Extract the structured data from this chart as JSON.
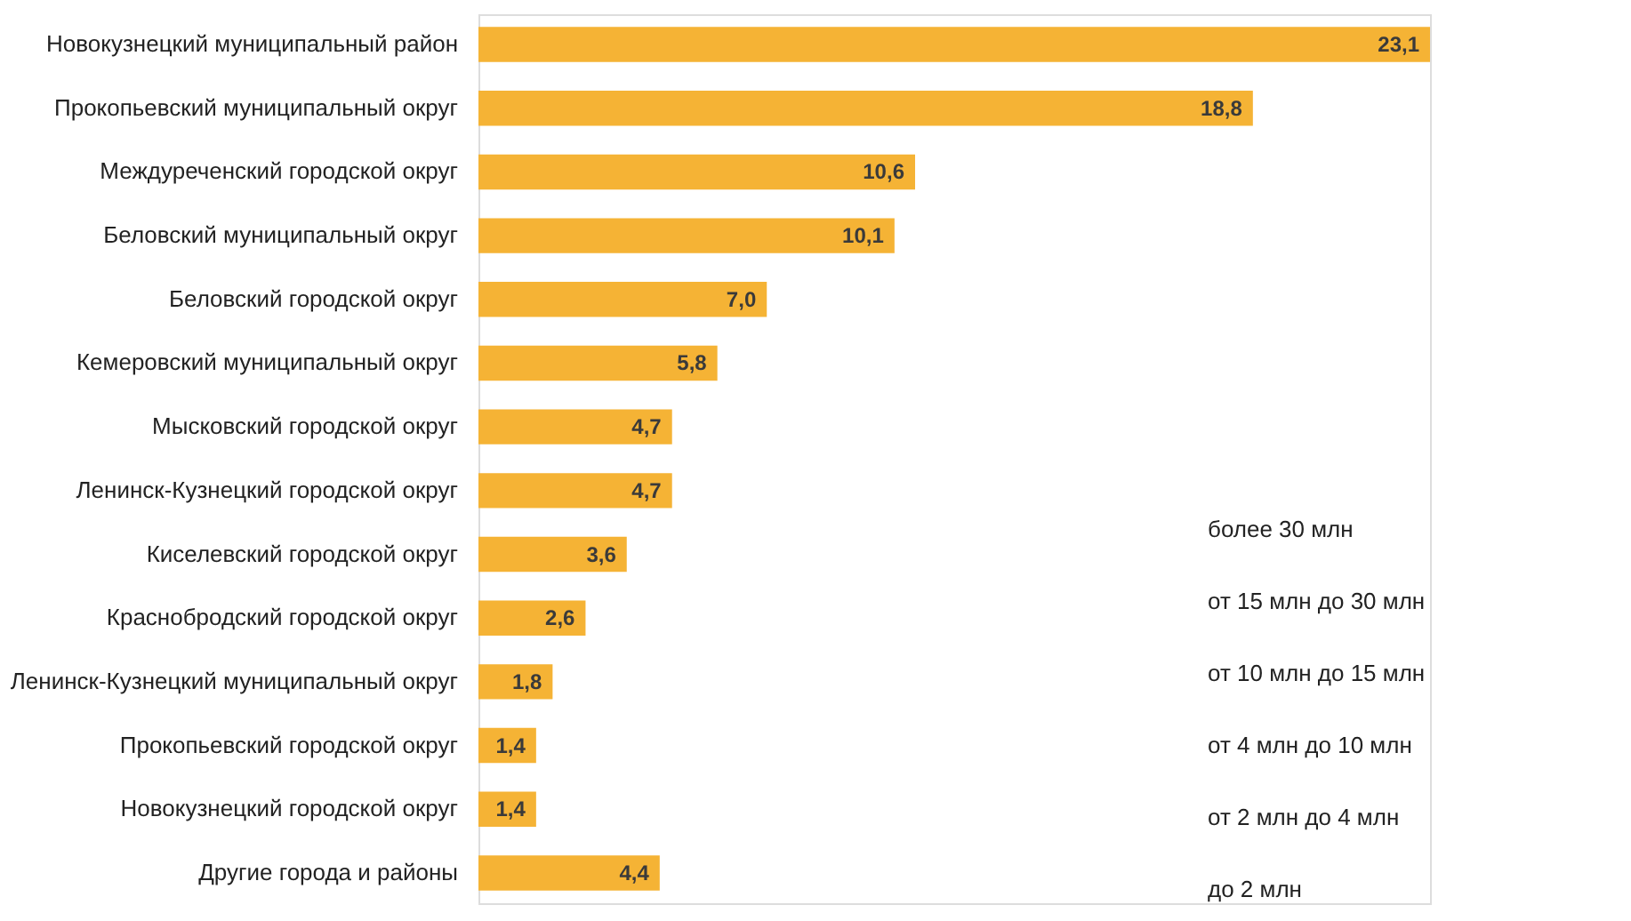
{
  "chart_data": {
    "type": "bar",
    "orientation": "horizontal",
    "categories": [
      "Новокузнецкий муниципальный район",
      "Прокопьевский муниципальный округ",
      "Междуреченский городской округ",
      "Беловский муниципальный округ",
      "Беловский городской округ",
      "Кемеровский муниципальный округ",
      "Мысковский городской округ",
      "Ленинск-Кузнецкий городской округ",
      "Киселевский городской округ",
      "Краснобродский городской округ",
      "Ленинск-Кузнецкий муниципальный округ",
      "Прокопьевский городской округ",
      "Новокузнецкий городской округ",
      "Другие города и районы"
    ],
    "values": [
      23.1,
      18.8,
      10.6,
      10.1,
      7.0,
      5.8,
      4.7,
      4.7,
      3.6,
      2.6,
      1.8,
      1.4,
      1.4,
      4.4
    ],
    "value_labels": [
      "23,1",
      "18,8",
      "10,6",
      "10,1",
      "7,0",
      "5,8",
      "4,7",
      "4,7",
      "3,6",
      "2,6",
      "1,8",
      "1,4",
      "1,4",
      "4,4"
    ],
    "color": "#f5b335",
    "annotations": [
      "более 30 млн",
      "от 15 млн до 30 млн",
      "от 10 млн до 15 млн",
      "от 4 млн до 10 млн",
      "от 2 млн до 4 млн",
      "до 2 млн"
    ]
  }
}
